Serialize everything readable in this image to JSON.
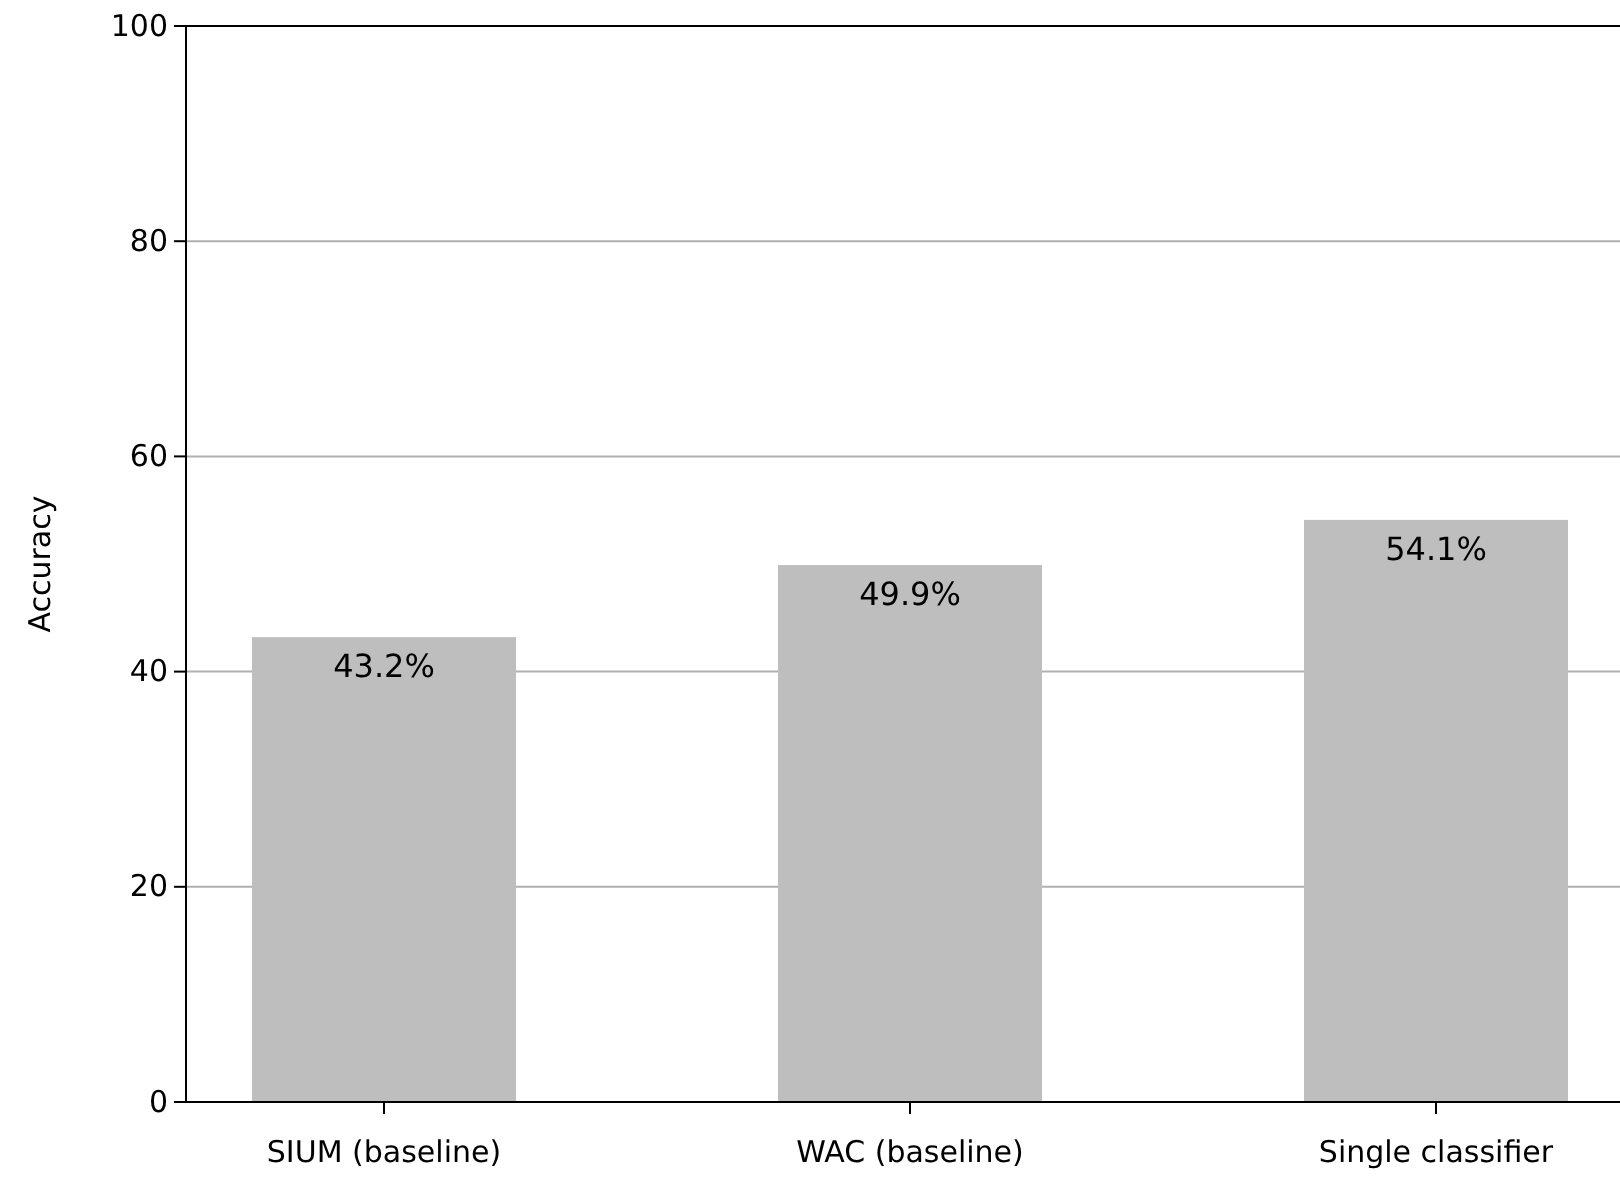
{
  "chart_data": {
    "type": "bar",
    "ylabel": "Accuracy",
    "categories": [
      "SIUM (baseline)",
      "WAC (baseline)",
      "Single classifier"
    ],
    "values": [
      43.2,
      49.9,
      54.1
    ],
    "value_labels": [
      "43.2%",
      "49.9%",
      "54.1%"
    ],
    "color": "#bebebe",
    "ylim": [
      0,
      100
    ],
    "yticks": [
      0,
      20,
      40,
      60,
      80,
      100
    ],
    "grid": "y"
  }
}
